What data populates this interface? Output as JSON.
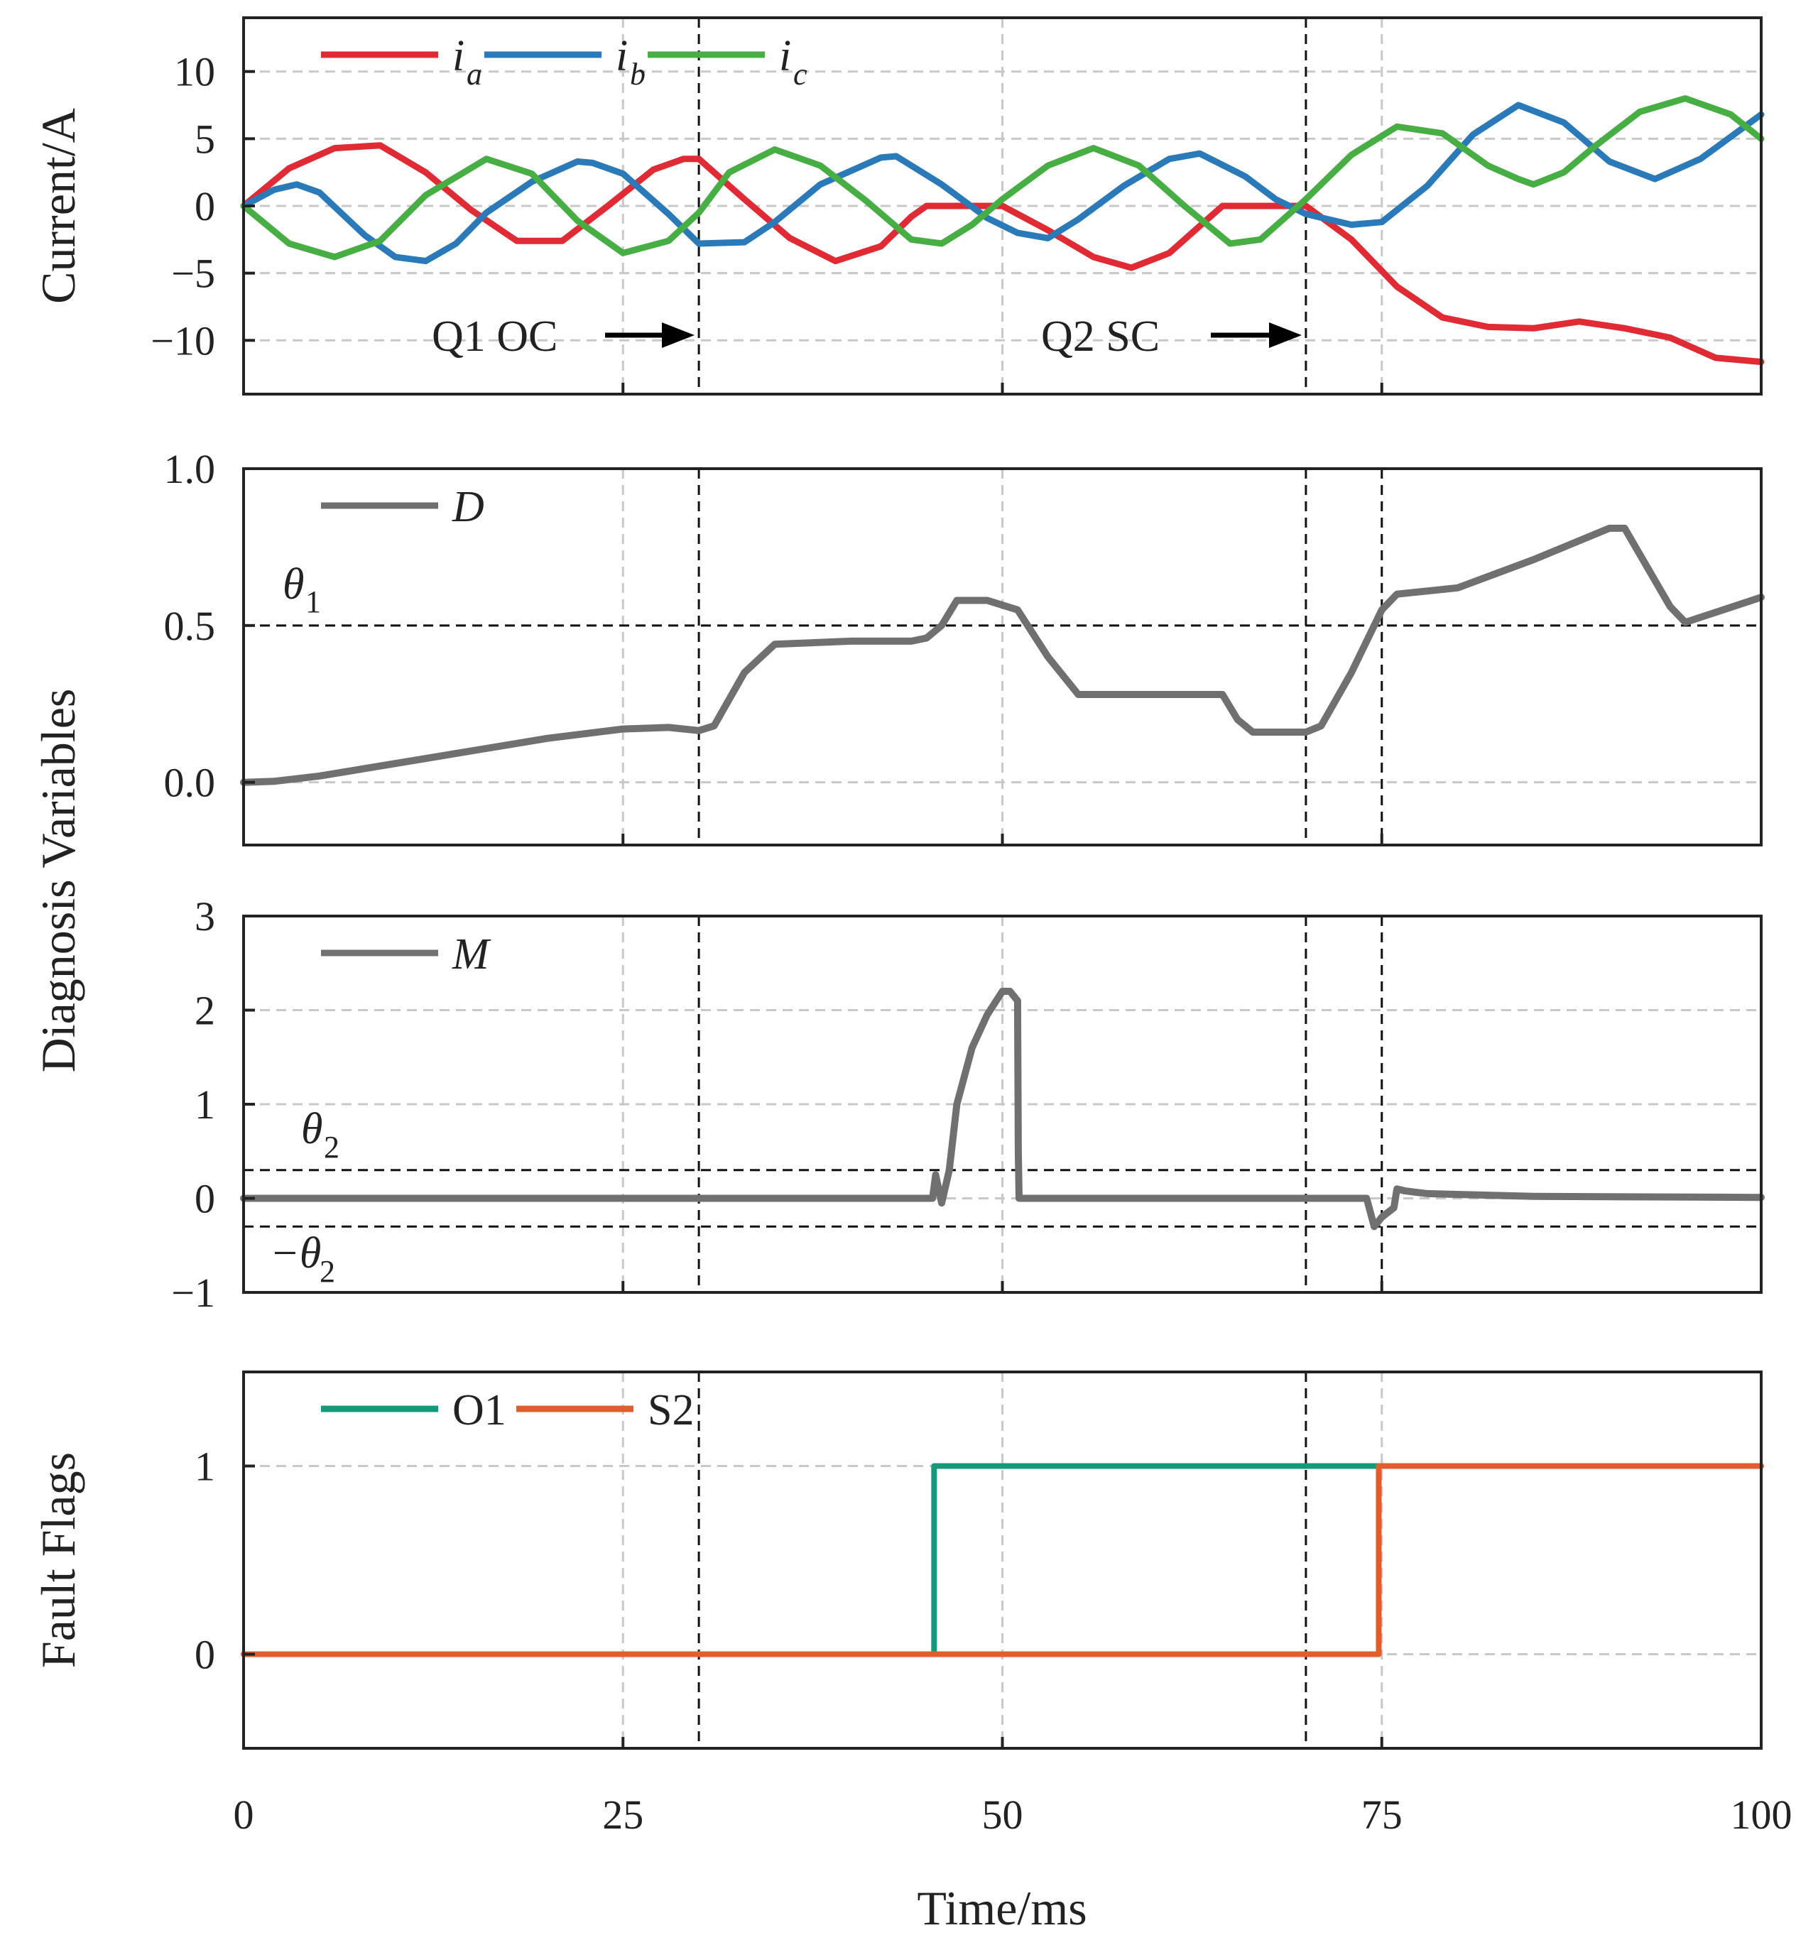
{
  "chart_data": [
    {
      "type": "line",
      "title": "",
      "xlabel": "",
      "ylabel": "Current/A",
      "xlim": [
        0,
        100
      ],
      "ylim": [
        -14,
        14
      ],
      "xticks": [
        0,
        25,
        50,
        75,
        100
      ],
      "yticks": [
        10,
        5,
        0,
        -5,
        -10
      ],
      "ytick_labels": [
        "10",
        "5",
        "0",
        "−5",
        "−10"
      ],
      "grid": true,
      "legend": {
        "placement": "top-left",
        "entries": [
          "ia",
          "ib",
          "ic"
        ]
      },
      "annotations": [
        {
          "text": "Q1 OC",
          "arrow_to_x": 30,
          "y": -9.5
        },
        {
          "text": "Q2 SC",
          "arrow_to_x": 70,
          "y": -9.5
        }
      ],
      "event_lines_x": [
        30,
        70
      ],
      "series": [
        {
          "name": "ia",
          "symbol": "i",
          "subscript": "a",
          "color": "#e02a34",
          "x": [
            0,
            3,
            6,
            9,
            12,
            15,
            18,
            21,
            24,
            27,
            29,
            30,
            33,
            36,
            39,
            42,
            44,
            45,
            47,
            50,
            53,
            56,
            58.5,
            61,
            63,
            64.5,
            65,
            67,
            70,
            73,
            76,
            79,
            82,
            85,
            88,
            91,
            94,
            97,
            100
          ],
          "values": [
            0,
            2.8,
            4.3,
            4.5,
            2.5,
            -0.3,
            -2.6,
            -2.6,
            0.0,
            2.7,
            3.5,
            3.5,
            0.5,
            -2.4,
            -4.1,
            -3.0,
            -0.8,
            0,
            0,
            0,
            -1.8,
            -3.8,
            -4.6,
            -3.5,
            -1.5,
            0,
            0,
            0,
            0,
            -2.5,
            -6.0,
            -8.3,
            -9.0,
            -9.1,
            -8.6,
            -9.1,
            -9.8,
            -11.3,
            -11.6
          ]
        },
        {
          "name": "ib",
          "symbol": "i",
          "subscript": "b",
          "color": "#2a7ab9",
          "x": [
            0,
            2,
            3.5,
            5,
            8,
            10,
            12,
            14,
            16,
            19,
            22,
            23,
            25,
            28,
            30,
            33,
            35,
            38,
            42,
            43,
            46,
            49,
            51,
            53,
            55,
            58,
            61,
            63,
            66,
            68,
            70,
            73,
            75,
            78,
            81,
            84,
            87,
            90,
            93,
            96,
            100
          ],
          "values": [
            0,
            1.2,
            1.6,
            1.0,
            -2.2,
            -3.8,
            -4.1,
            -2.8,
            -0.5,
            1.8,
            3.3,
            3.2,
            2.4,
            -0.6,
            -2.8,
            -2.7,
            -1.2,
            1.6,
            3.6,
            3.7,
            1.6,
            -0.9,
            -2.0,
            -2.4,
            -1.0,
            1.5,
            3.5,
            3.9,
            2.2,
            0.5,
            -0.6,
            -1.4,
            -1.2,
            1.5,
            5.3,
            7.5,
            6.2,
            3.3,
            2.0,
            3.5,
            6.8
          ]
        },
        {
          "name": "ic",
          "symbol": "i",
          "subscript": "c",
          "color": "#47ae44",
          "x": [
            0,
            3,
            6,
            9,
            12,
            16,
            19,
            22,
            25,
            28,
            30,
            32,
            35,
            38,
            41,
            44,
            46,
            48,
            50,
            53,
            56,
            59,
            62,
            65,
            67,
            70,
            73,
            76,
            79,
            82,
            84,
            85,
            87,
            89,
            92,
            95,
            98,
            100
          ],
          "values": [
            0,
            -2.8,
            -3.8,
            -2.6,
            0.8,
            3.5,
            2.4,
            -1.1,
            -3.5,
            -2.6,
            -0.5,
            2.5,
            4.2,
            3.0,
            0.4,
            -2.5,
            -2.8,
            -1.4,
            0.5,
            3.0,
            4.3,
            3.0,
            0.0,
            -2.8,
            -2.5,
            0.5,
            3.8,
            5.9,
            5.4,
            3.0,
            2.0,
            1.6,
            2.5,
            4.4,
            7.0,
            8.0,
            6.8,
            5.0
          ]
        }
      ]
    },
    {
      "type": "line",
      "title": "",
      "xlabel": "",
      "ylabel": "Diagnosis Variables",
      "xlim": [
        0,
        100
      ],
      "ylim": [
        -0.2,
        1.0
      ],
      "xticks": [
        0,
        25,
        50,
        75,
        100
      ],
      "yticks": [
        1.0,
        0.5,
        0.0
      ],
      "ytick_labels": [
        "1.0",
        "0.5",
        "0.0"
      ],
      "grid": true,
      "legend": {
        "placement": "top-left",
        "entries": [
          "D"
        ]
      },
      "threshold": {
        "symbol": "θ",
        "subscript": "1",
        "value": 0.5
      },
      "event_lines_x": [
        30,
        70,
        75
      ],
      "series": [
        {
          "name": "D",
          "color": "#707070",
          "x": [
            0,
            2,
            5,
            10,
            15,
            20,
            25,
            28,
            30,
            31,
            33,
            35,
            40,
            44,
            45,
            46,
            47,
            49,
            51,
            53,
            55,
            60,
            64.5,
            65.5,
            66.5,
            70,
            71,
            73,
            75,
            76,
            80,
            85,
            90,
            91,
            94,
            95,
            100
          ],
          "values": [
            0,
            0.003,
            0.02,
            0.06,
            0.1,
            0.14,
            0.17,
            0.175,
            0.165,
            0.18,
            0.35,
            0.44,
            0.45,
            0.45,
            0.46,
            0.5,
            0.58,
            0.58,
            0.55,
            0.4,
            0.28,
            0.28,
            0.28,
            0.2,
            0.16,
            0.16,
            0.18,
            0.35,
            0.55,
            0.6,
            0.62,
            0.71,
            0.81,
            0.81,
            0.56,
            0.51,
            0.59
          ]
        }
      ]
    },
    {
      "type": "line",
      "title": "",
      "xlabel": "",
      "ylabel": "Diagnosis Variables",
      "xlim": [
        0,
        100
      ],
      "ylim": [
        -1,
        3
      ],
      "xticks": [
        0,
        25,
        50,
        75,
        100
      ],
      "yticks": [
        3,
        2,
        1,
        0,
        -1
      ],
      "ytick_labels": [
        "3",
        "2",
        "1",
        "0",
        "−1"
      ],
      "grid": true,
      "legend": {
        "placement": "top-left",
        "entries": [
          "M"
        ]
      },
      "threshold": {
        "symbol": "θ",
        "subscript": "2",
        "value": 0.3,
        "neg_label": "−θ"
      },
      "event_lines_x": [
        30,
        70,
        75
      ],
      "series": [
        {
          "name": "M",
          "color": "#707070",
          "x": [
            0,
            45.4,
            45.6,
            46.0,
            46.5,
            47,
            48,
            49,
            50,
            50.5,
            51.0,
            51.05,
            51.1,
            74,
            74.5,
            75,
            75.8,
            76,
            76.5,
            78,
            85,
            100
          ],
          "values": [
            0,
            0,
            0.25,
            -0.05,
            0.3,
            1.0,
            1.6,
            1.95,
            2.2,
            2.2,
            2.1,
            0.5,
            0,
            0,
            -0.3,
            -0.2,
            -0.1,
            0.1,
            0.08,
            0.05,
            0.02,
            0.01
          ]
        }
      ]
    },
    {
      "type": "line",
      "title": "",
      "xlabel": "Time/ms",
      "ylabel": "Fault Flags",
      "xlim": [
        0,
        100
      ],
      "ylim": [
        -0.5,
        1.5
      ],
      "xticks": [
        0,
        25,
        50,
        75,
        100
      ],
      "xtick_labels": [
        "0",
        "25",
        "50",
        "75",
        "100"
      ],
      "yticks": [
        1,
        0
      ],
      "ytick_labels": [
        "1",
        "0"
      ],
      "grid": true,
      "legend": {
        "placement": "top-left",
        "entries": [
          "O1",
          "S2"
        ]
      },
      "event_lines_x": [
        30,
        70
      ],
      "series": [
        {
          "name": "O1",
          "color": "#16997a",
          "x": [
            0,
            45.5,
            45.5,
            74.8,
            74.8
          ],
          "values": [
            0,
            0,
            1,
            1,
            1
          ]
        },
        {
          "name": "S2",
          "color": "#df5e2c",
          "x": [
            0,
            74.8,
            74.8,
            100
          ],
          "values": [
            0,
            0,
            1,
            1
          ]
        }
      ]
    }
  ]
}
